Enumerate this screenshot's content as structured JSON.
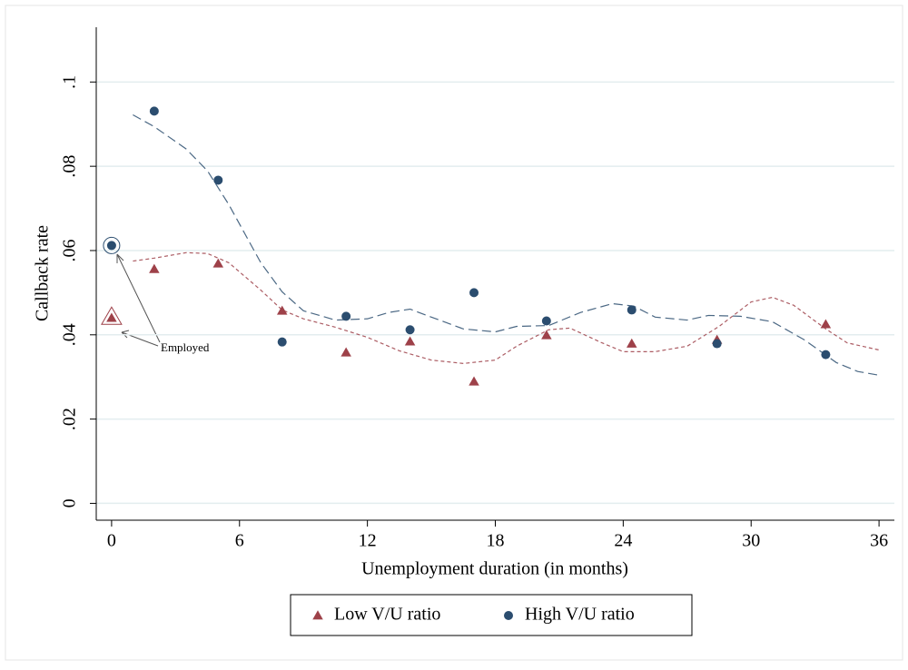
{
  "chart_data": {
    "type": "scatter",
    "x_label": "Unemployment duration (in months)",
    "y_label": "Callback rate",
    "xlim": [
      -0.72,
      36.72
    ],
    "xticks": [
      0,
      6,
      12,
      18,
      24,
      30,
      36
    ],
    "ylim": [
      -0.004,
      0.113
    ],
    "yticks": [
      0,
      {
        "value": 0.02,
        "label": ".02"
      },
      {
        "value": 0.04,
        "label": ".04"
      },
      {
        "value": 0.06,
        "label": ".06"
      },
      {
        "value": 0.08,
        "label": ".08"
      },
      {
        "value": 0.1,
        "label": ".1"
      }
    ],
    "grid": true,
    "legend": "bottom",
    "annotation": "Employed",
    "series": [
      {
        "name": "Low V/U ratio",
        "color": "#9e4149",
        "marker": "triangle",
        "x": [
          0,
          2,
          5,
          8,
          11,
          14,
          17,
          20.4,
          24.4,
          28.4,
          33.5
        ],
        "values": [
          0.044,
          0.0556,
          0.0569,
          0.0457,
          0.0358,
          0.0384,
          0.0289,
          0.0399,
          0.0379,
          0.0388,
          0.0425
        ],
        "smooth_x": [
          1,
          2,
          3.5,
          4.5,
          5.5,
          7,
          8,
          9,
          10.5,
          12,
          13.5,
          15,
          16.5,
          18,
          19,
          20.5,
          21.5,
          23,
          24,
          25.5,
          27,
          28.5,
          30,
          31,
          32,
          33.5,
          34.5,
          36
        ],
        "smooth": [
          0.0575,
          0.0582,
          0.0595,
          0.0593,
          0.0571,
          0.0506,
          0.0459,
          0.0438,
          0.0418,
          0.0394,
          0.0362,
          0.034,
          0.0332,
          0.034,
          0.0373,
          0.0412,
          0.0416,
          0.0381,
          0.036,
          0.036,
          0.0373,
          0.042,
          0.0478,
          0.0489,
          0.047,
          0.0414,
          0.0381,
          0.0364
        ]
      },
      {
        "name": "High V/U ratio",
        "color": "#2b4d6f",
        "marker": "circle",
        "x": [
          0,
          2,
          5,
          8,
          11,
          14,
          17,
          20.4,
          24.4,
          28.4,
          33.5
        ],
        "values": [
          0.0612,
          0.0931,
          0.0767,
          0.0383,
          0.0444,
          0.0412,
          0.05,
          0.0433,
          0.0459,
          0.0379,
          0.0353
        ],
        "smooth_x": [
          1,
          2,
          3.5,
          4.5,
          5.5,
          7,
          8,
          9,
          10.5,
          12,
          13,
          14,
          15,
          16.5,
          18,
          19,
          20.5,
          22,
          23.5,
          24.5,
          25.5,
          27,
          28,
          29.5,
          31,
          32.5,
          34,
          35,
          36
        ],
        "smooth": [
          0.0922,
          0.0894,
          0.0841,
          0.0789,
          0.0709,
          0.0571,
          0.0502,
          0.0457,
          0.0435,
          0.0438,
          0.0453,
          0.0461,
          0.0442,
          0.0414,
          0.0407,
          0.042,
          0.0422,
          0.0453,
          0.0474,
          0.0468,
          0.0442,
          0.0435,
          0.0446,
          0.0444,
          0.0431,
          0.0388,
          0.0334,
          0.0313,
          0.0304
        ]
      }
    ]
  }
}
